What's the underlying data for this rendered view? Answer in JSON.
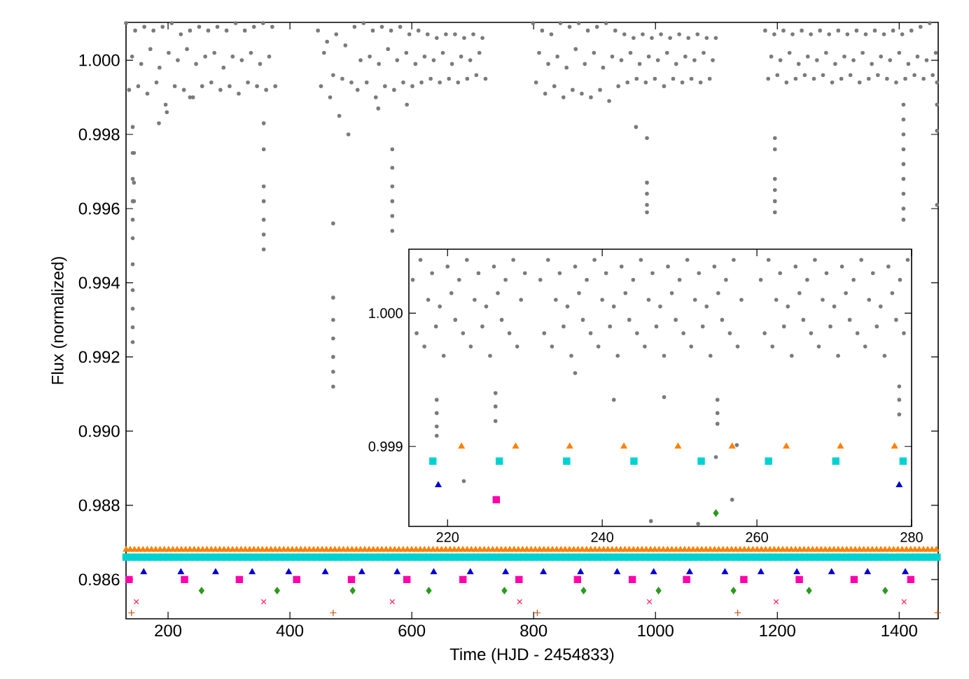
{
  "chart_data": [
    {
      "type": "scatter",
      "xlabel": "Time (HJD - 2454833)",
      "ylabel": "Flux (normalized)",
      "xlim": [
        131,
        1464
      ],
      "ylim": [
        0.98494,
        1.00102
      ],
      "xticks": [
        200,
        400,
        600,
        800,
        1000,
        1200,
        1400
      ],
      "yticks": [
        {
          "value": 0.986,
          "label": "0.986"
        },
        {
          "value": 0.988,
          "label": "0.988"
        },
        {
          "value": 0.99,
          "label": "0.990"
        },
        {
          "value": 0.992,
          "label": "0.992"
        },
        {
          "value": 0.994,
          "label": "0.994"
        },
        {
          "value": 0.996,
          "label": "0.996"
        },
        {
          "value": 0.998,
          "label": "0.998"
        },
        {
          "value": 1.0,
          "label": "1.000"
        }
      ],
      "series": [
        {
          "color": "#7a7a7a",
          "marker": "circle",
          "x": [
            131,
            136,
            141,
            146,
            151,
            156,
            161,
            166,
            171,
            176,
            181,
            186,
            191,
            196,
            201,
            206,
            211,
            216,
            221,
            226,
            231,
            236,
            241,
            246,
            251,
            256,
            261,
            266,
            271,
            276,
            281,
            286,
            291,
            296,
            301,
            306,
            311,
            316,
            321,
            326,
            331,
            336,
            341,
            346,
            351,
            356,
            361,
            366,
            371,
            376,
            446,
            451,
            456,
            461,
            466,
            471,
            476,
            481,
            486,
            491,
            496,
            501,
            506,
            511,
            516,
            521,
            526,
            531,
            536,
            541,
            546,
            551,
            556,
            561,
            566,
            571,
            576,
            581,
            586,
            591,
            596,
            601,
            606,
            611,
            616,
            621,
            626,
            631,
            636,
            641,
            646,
            651,
            656,
            661,
            666,
            671,
            676,
            681,
            686,
            691,
            696,
            701,
            706,
            711,
            716,
            721,
            799,
            804,
            809,
            814,
            819,
            824,
            829,
            834,
            839,
            844,
            849,
            854,
            859,
            864,
            869,
            874,
            879,
            884,
            889,
            894,
            899,
            904,
            909,
            914,
            919,
            924,
            929,
            934,
            939,
            944,
            949,
            954,
            959,
            964,
            969,
            974,
            979,
            984,
            989,
            994,
            999,
            1004,
            1009,
            1014,
            1019,
            1024,
            1029,
            1034,
            1039,
            1044,
            1049,
            1054,
            1059,
            1064,
            1069,
            1074,
            1079,
            1084,
            1089,
            1094,
            1099,
            1180,
            1185,
            1190,
            1195,
            1200,
            1205,
            1210,
            1215,
            1220,
            1225,
            1230,
            1235,
            1240,
            1245,
            1250,
            1255,
            1260,
            1265,
            1270,
            1275,
            1280,
            1285,
            1290,
            1295,
            1300,
            1305,
            1310,
            1315,
            1320,
            1325,
            1330,
            1335,
            1340,
            1345,
            1350,
            1355,
            1360,
            1365,
            1370,
            1375,
            1380,
            1385,
            1390,
            1395,
            1400,
            1405,
            1410,
            1415,
            1420,
            1425,
            1430,
            1435,
            1440,
            1445,
            1450,
            1455,
            1460,
            142,
            142,
            142,
            142,
            142,
            142,
            142,
            142,
            142,
            142,
            142,
            144,
            144,
            144,
            357,
            357,
            357,
            357,
            357,
            357,
            357,
            471,
            471,
            471,
            471,
            471,
            471,
            471,
            568,
            568,
            568,
            568,
            568,
            568,
            986,
            986,
            986,
            986,
            986,
            1196,
            1196,
            1196,
            1196,
            1196,
            1196,
            1407,
            1407,
            1407,
            1407,
            1407,
            1407,
            1407,
            1407,
            1407,
            1462,
            1462,
            1462,
            1462,
            198,
            185,
            236,
            968,
            545,
            592
          ],
          "values": [
            1.001,
            0.9992,
            1.0001,
            1.0008,
            0.9993,
            0.9999,
            1.0009,
            0.9991,
            1.0003,
            1.0008,
            0.9994,
            0.9998,
            1.0009,
            0.9988,
            1.0002,
            1.001,
            0.9993,
            1.0,
            1.0007,
            0.9992,
            1.0003,
            1.0008,
            0.999,
            0.9999,
            1.0009,
            0.9993,
            1.0001,
            1.0008,
            0.9994,
            1.0002,
            1.0009,
            0.9992,
            0.9998,
            1.0008,
            0.9993,
            1.0001,
            1.001,
            0.9991,
            1.0,
            1.0008,
            0.9994,
            1.0002,
            1.0009,
            0.9993,
            0.9999,
            1.001,
            0.9992,
            1.0001,
            1.0009,
            0.9993,
            1.0008,
            0.9993,
            1.0002,
            1.0005,
            0.999,
            0.9996,
            1.0007,
            0.9985,
            0.9995,
            1.0004,
            0.998,
            0.9994,
            1.0009,
            0.9992,
            1.0,
            1.001,
            0.9994,
            1.0001,
            1.0008,
            0.999,
            0.9999,
            1.0009,
            0.9993,
            1.0003,
            1.0008,
            0.9992,
            1.0,
            1.0009,
            0.9994,
            1.0002,
            1.0007,
            0.9993,
            0.9999,
            1.0008,
            0.9994,
            1.0001,
            1.0007,
            0.9995,
            1.0,
            1.0006,
            0.9994,
            1.0002,
            1.0007,
            0.9995,
            0.9999,
            1.0007,
            0.9994,
            1.0001,
            1.0006,
            0.9995,
            1.0,
            1.0007,
            0.9996,
            1.0002,
            1.0006,
            0.9995,
            1.001,
            0.9994,
            1.0002,
            1.0008,
            0.9991,
            0.9999,
            1.0007,
            0.9993,
            1.0001,
            1.001,
            0.999,
            0.9998,
            1.0009,
            0.9992,
            1.0003,
            1.001,
            0.9991,
            0.9999,
            1.0008,
            0.999,
            1.0002,
            1.0009,
            0.9992,
            0.9998,
            1.001,
            0.9989,
            1.0001,
            1.0008,
            0.9993,
            1.0,
            1.0007,
            0.9994,
            1.0002,
            1.0006,
            0.9995,
            0.9999,
            1.0007,
            0.9994,
            1.0001,
            1.0006,
            0.9995,
            1.0,
            1.0007,
            0.9993,
            1.0002,
            1.0006,
            0.9995,
            0.9999,
            1.0007,
            0.9994,
            1.0001,
            1.0006,
            0.9995,
            1.0,
            1.0007,
            0.9994,
            1.0002,
            1.0006,
            0.9995,
            1.0,
            1.0006,
            1.0008,
            0.9995,
            1.0001,
            1.0007,
            0.9996,
            1.0,
            1.0008,
            0.9994,
            1.0002,
            1.0007,
            0.9995,
            0.9999,
            1.0008,
            0.9996,
            1.0001,
            1.0007,
            0.9995,
            1.0,
            1.0008,
            0.9996,
            1.0002,
            1.0007,
            0.9994,
            0.9999,
            1.0008,
            0.9995,
            1.0001,
            1.0007,
            0.9996,
            1.0,
            1.0008,
            0.9994,
            1.0002,
            1.0007,
            0.9995,
            0.9999,
            1.0008,
            0.9996,
            1.0001,
            1.0007,
            0.9995,
            1.0,
            1.0008,
            0.9994,
            1.0002,
            1.0007,
            0.9995,
            0.9999,
            1.0008,
            0.9996,
            1.0001,
            1.0009,
            0.9995,
            1.0,
            1.001,
            0.9996,
            1.0002,
            0.9982,
            0.9975,
            0.9968,
            0.9962,
            0.9957,
            0.9952,
            0.9945,
            0.9938,
            0.9933,
            0.9928,
            0.9924,
            0.9975,
            0.9967,
            0.9962,
            0.9983,
            0.9976,
            0.9966,
            0.9962,
            0.9957,
            0.9953,
            0.9949,
            0.9956,
            0.9936,
            0.993,
            0.9925,
            0.992,
            0.9916,
            0.9912,
            0.9976,
            0.9971,
            0.9966,
            0.9962,
            0.9958,
            0.9954,
            0.9979,
            0.9967,
            0.9964,
            0.9961,
            0.9959,
            0.9979,
            0.9976,
            0.9968,
            0.9965,
            0.9962,
            0.9959,
            0.9988,
            0.9984,
            0.998,
            0.9976,
            0.9972,
            0.9968,
            0.9964,
            0.996,
            0.9957,
            0.9994,
            0.9988,
            0.9981,
            0.9961,
            0.9986,
            0.9983,
            0.999,
            0.9982,
            0.9987,
            0.9988
          ]
        },
        {
          "color": "#ff8000",
          "marker": "triangle",
          "x": [
            131.2,
            137.8,
            144.8,
            151.8,
            158.8,
            165.8,
            172.8,
            179.8,
            186.8,
            193.8,
            200.8,
            207.8,
            214.8,
            221.8,
            228.8,
            235.8,
            242.8,
            249.8,
            256.8,
            263.8,
            270.8,
            277.8,
            284.8,
            291.8,
            298.8,
            305.8,
            312.8,
            319.8,
            326.8,
            333.8,
            340.8,
            347.8,
            354.8,
            361.8,
            368.8,
            375.8,
            382.8,
            389.8,
            396.8,
            403.8,
            410.8,
            417.8,
            424.8,
            431.8,
            438.8,
            445.8,
            452.8,
            459.8,
            466.8,
            473.8,
            480.8,
            487.8,
            494.8,
            501.8,
            508.8,
            515.8,
            522.8,
            529.8,
            536.8,
            543.8,
            550.8,
            557.8,
            564.8,
            571.8,
            578.8,
            585.8,
            592.8,
            599.8,
            606.8,
            613.8,
            620.8,
            627.8,
            634.8,
            641.8,
            648.8,
            655.8,
            662.8,
            669.8,
            676.8,
            683.8,
            690.8,
            697.8,
            704.8,
            711.8,
            718.8,
            725.8,
            732.8,
            739.8,
            746.8,
            753.8,
            760.8,
            767.8,
            774.8,
            781.8,
            788.8,
            795.8,
            802.8,
            809.8,
            816.8,
            823.8,
            830.8,
            837.8,
            844.8,
            851.8,
            858.8,
            865.8,
            872.8,
            879.8,
            886.8,
            893.8,
            900.8,
            907.8,
            914.8,
            921.8,
            928.8,
            935.8,
            942.8,
            949.8,
            956.8,
            963.8,
            970.8,
            977.8,
            984.8,
            991.8,
            998.8,
            1005.8,
            1012.8,
            1019.8,
            1026.8,
            1033.8,
            1040.8,
            1047.8,
            1054.8,
            1061.8,
            1068.8,
            1075.8,
            1082.8,
            1089.8,
            1096.8,
            1103.8,
            1110.8,
            1117.8,
            1124.8,
            1131.8,
            1138.8,
            1145.8,
            1152.8,
            1159.8,
            1166.8,
            1173.8,
            1180.8,
            1187.8,
            1194.8,
            1201.8,
            1208.8,
            1215.8,
            1222.8,
            1229.8,
            1236.8,
            1243.8,
            1250.8,
            1257.8,
            1264.8,
            1271.8,
            1278.8,
            1285.8,
            1292.8,
            1299.8,
            1306.8,
            1313.8,
            1320.8,
            1327.8,
            1334.8,
            1341.8,
            1348.8,
            1355.8,
            1362.8,
            1369.8,
            1376.8,
            1383.8,
            1390.8,
            1397.8,
            1404.8,
            1411.8,
            1418.8,
            1425.8,
            1432.8,
            1439.8,
            1446.8,
            1453.8,
            1460.8
          ],
          "values": [
            0.9868,
            0.9868,
            0.9868,
            0.9868,
            0.9868,
            0.9868,
            0.9868,
            0.9868,
            0.9868,
            0.9868,
            0.9868,
            0.9868,
            0.9868,
            0.9868,
            0.9868,
            0.9868,
            0.9868,
            0.9868,
            0.9868,
            0.9868,
            0.9868,
            0.9868,
            0.9868,
            0.9868,
            0.9868,
            0.9868,
            0.9868,
            0.9868,
            0.9868,
            0.9868,
            0.9868,
            0.9868,
            0.9868,
            0.9868,
            0.9868,
            0.9868,
            0.9868,
            0.9868,
            0.9868,
            0.9868,
            0.9868,
            0.9868,
            0.9868,
            0.9868,
            0.9868,
            0.9868,
            0.9868,
            0.9868,
            0.9868,
            0.9868,
            0.9868,
            0.9868,
            0.9868,
            0.9868,
            0.9868,
            0.9868,
            0.9868,
            0.9868,
            0.9868,
            0.9868,
            0.9868,
            0.9868,
            0.9868,
            0.9868,
            0.9868,
            0.9868,
            0.9868,
            0.9868,
            0.9868,
            0.9868,
            0.9868,
            0.9868,
            0.9868,
            0.9868,
            0.9868,
            0.9868,
            0.9868,
            0.9868,
            0.9868,
            0.9868,
            0.9868,
            0.9868,
            0.9868,
            0.9868,
            0.9868,
            0.9868,
            0.9868,
            0.9868,
            0.9868,
            0.9868,
            0.9868,
            0.9868,
            0.9868,
            0.9868,
            0.9868,
            0.9868,
            0.9868,
            0.9868,
            0.9868,
            0.9868,
            0.9868,
            0.9868,
            0.9868,
            0.9868,
            0.9868,
            0.9868,
            0.9868,
            0.9868,
            0.9868,
            0.9868,
            0.9868,
            0.9868,
            0.9868,
            0.9868,
            0.9868,
            0.9868,
            0.9868,
            0.9868,
            0.9868,
            0.9868,
            0.9868,
            0.9868,
            0.9868,
            0.9868,
            0.9868,
            0.9868,
            0.9868,
            0.9868,
            0.9868,
            0.9868,
            0.9868,
            0.9868,
            0.9868,
            0.9868,
            0.9868,
            0.9868,
            0.9868,
            0.9868,
            0.9868,
            0.9868,
            0.9868,
            0.9868,
            0.9868,
            0.9868,
            0.9868,
            0.9868,
            0.9868,
            0.9868,
            0.9868,
            0.9868,
            0.9868,
            0.9868,
            0.9868,
            0.9868,
            0.9868,
            0.9868,
            0.9868,
            0.9868,
            0.9868,
            0.9868,
            0.9868,
            0.9868,
            0.9868,
            0.9868,
            0.9868,
            0.9868,
            0.9868,
            0.9868,
            0.9868,
            0.9868,
            0.9868,
            0.9868,
            0.9868,
            0.9868,
            0.9868,
            0.9868,
            0.9868,
            0.9868,
            0.9868,
            0.9868,
            0.9868,
            0.9868,
            0.9868,
            0.9868,
            0.9868,
            0.9868,
            0.9868,
            0.9868,
            0.9868,
            0.9868,
            0.9868
          ]
        },
        {
          "color": "#00d2d2",
          "marker": "square",
          "x": [
            131,
            139.7,
            148.4,
            157.1,
            165.8,
            174.5,
            183.2,
            191.9,
            200.6,
            209.3,
            218,
            226.7,
            235.4,
            244.1,
            252.8,
            261.5,
            270.2,
            278.9,
            287.6,
            296.3,
            305,
            313.7,
            322.4,
            331.1,
            339.8,
            348.5,
            357.2,
            365.9,
            374.6,
            383.3,
            392,
            400.7,
            409.4,
            418.1,
            426.8,
            435.5,
            444.2,
            452.9,
            461.6,
            470.3,
            479,
            487.7,
            496.4,
            505.1,
            513.8,
            522.5,
            531.2,
            539.9,
            548.6,
            557.3,
            566,
            574.7,
            583.4,
            592.1,
            600.8,
            609.5,
            618.2,
            626.9,
            635.6,
            644.3,
            653,
            661.7,
            670.4,
            679.1,
            687.8,
            696.5,
            705.2,
            713.9,
            722.6,
            731.3,
            740,
            748.7,
            757.4,
            766.1,
            774.8,
            783.5,
            792.2,
            800.9,
            809.6,
            818.3,
            827,
            835.7,
            844.4,
            853.1,
            861.8,
            870.5,
            879.2,
            887.9,
            896.6,
            905.3,
            914,
            922.7,
            931.4,
            940.1,
            948.8,
            957.5,
            966.2,
            974.9,
            983.6,
            992.3,
            1001,
            1009.7,
            1018.4,
            1027.1,
            1035.8,
            1044.5,
            1053.2,
            1061.9,
            1070.6,
            1079.3,
            1088,
            1096.7,
            1105.4,
            1114.1,
            1122.8,
            1131.5,
            1140.2,
            1148.9,
            1157.6,
            1166.3,
            1175,
            1183.7,
            1192.4,
            1201.1,
            1209.8,
            1218.5,
            1227.2,
            1235.9,
            1244.6,
            1253.3,
            1262,
            1270.7,
            1279.4,
            1288.1,
            1296.8,
            1305.5,
            1314.2,
            1322.9,
            1331.6,
            1340.3,
            1349,
            1357.7,
            1366.4,
            1375.1,
            1383.8,
            1392.5,
            1401.2,
            1409.9,
            1418.6,
            1427.3,
            1436,
            1444.7,
            1453.4,
            1462.1
          ],
          "values": [
            0.9866,
            0.9866,
            0.9866,
            0.9866,
            0.9866,
            0.9866,
            0.9866,
            0.9866,
            0.9866,
            0.9866,
            0.9866,
            0.9866,
            0.9866,
            0.9866,
            0.9866,
            0.9866,
            0.9866,
            0.9866,
            0.9866,
            0.9866,
            0.9866,
            0.9866,
            0.9866,
            0.9866,
            0.9866,
            0.9866,
            0.9866,
            0.9866,
            0.9866,
            0.9866,
            0.9866,
            0.9866,
            0.9866,
            0.9866,
            0.9866,
            0.9866,
            0.9866,
            0.9866,
            0.9866,
            0.9866,
            0.9866,
            0.9866,
            0.9866,
            0.9866,
            0.9866,
            0.9866,
            0.9866,
            0.9866,
            0.9866,
            0.9866,
            0.9866,
            0.9866,
            0.9866,
            0.9866,
            0.9866,
            0.9866,
            0.9866,
            0.9866,
            0.9866,
            0.9866,
            0.9866,
            0.9866,
            0.9866,
            0.9866,
            0.9866,
            0.9866,
            0.9866,
            0.9866,
            0.9866,
            0.9866,
            0.9866,
            0.9866,
            0.9866,
            0.9866,
            0.9866,
            0.9866,
            0.9866,
            0.9866,
            0.9866,
            0.9866,
            0.9866,
            0.9866,
            0.9866,
            0.9866,
            0.9866,
            0.9866,
            0.9866,
            0.9866,
            0.9866,
            0.9866,
            0.9866,
            0.9866,
            0.9866,
            0.9866,
            0.9866,
            0.9866,
            0.9866,
            0.9866,
            0.9866,
            0.9866,
            0.9866,
            0.9866,
            0.9866,
            0.9866,
            0.9866,
            0.9866,
            0.9866,
            0.9866,
            0.9866,
            0.9866,
            0.9866,
            0.9866,
            0.9866,
            0.9866,
            0.9866,
            0.9866,
            0.9866,
            0.9866,
            0.9866,
            0.9866,
            0.9866,
            0.9866,
            0.9866,
            0.9866,
            0.9866,
            0.9866,
            0.9866,
            0.9866,
            0.9866,
            0.9866,
            0.9866,
            0.9866,
            0.9866,
            0.9866,
            0.9866,
            0.9866,
            0.9866,
            0.9866,
            0.9866,
            0.9866,
            0.9866,
            0.9866,
            0.9866,
            0.9866,
            0.9866,
            0.9866,
            0.9866,
            0.9866,
            0.9866,
            0.9866,
            0.9866,
            0.9866,
            0.9866,
            0.9866
          ]
        },
        {
          "color": "#0000d0",
          "marker": "triangle",
          "x": [
            160,
            221,
            278,
            338,
            398,
            458,
            518,
            576,
            636,
            696,
            754,
            816,
            877,
            937,
            997,
            1056,
            1114,
            1173,
            1232,
            1289,
            1348,
            1410
          ],
          "values": [
            0.9862,
            0.9862,
            0.9862,
            0.9862,
            0.9862,
            0.9862,
            0.9862,
            0.9862,
            0.9862,
            0.9862,
            0.9862,
            0.9862,
            0.9862,
            0.9862,
            0.9862,
            0.9862,
            0.9862,
            0.9862,
            0.9862,
            0.9862,
            0.9862,
            0.9862
          ]
        },
        {
          "color": "#ff00aa",
          "marker": "square",
          "x": [
            136,
            227,
            317,
            411,
            501,
            592,
            684,
            776,
            872,
            962,
            1051,
            1145,
            1236,
            1326,
            1419
          ],
          "values": [
            0.986,
            0.986,
            0.986,
            0.986,
            0.986,
            0.986,
            0.986,
            0.986,
            0.986,
            0.986,
            0.986,
            0.986,
            0.986,
            0.986,
            0.986
          ]
        },
        {
          "color": "#2a9a1a",
          "marker": "diamond",
          "x": [
            255,
            379,
            503,
            628,
            752,
            882,
            1005,
            1128,
            1252,
            1377
          ],
          "values": [
            0.9857,
            0.9857,
            0.9857,
            0.9857,
            0.9857,
            0.9857,
            0.9857,
            0.9857,
            0.9857,
            0.9857
          ]
        },
        {
          "color": "#ff1040",
          "marker": "cross",
          "x": [
            148,
            357,
            568,
            777,
            990,
            1198,
            1408
          ],
          "values": [
            0.9854,
            0.9854,
            0.9854,
            0.9854,
            0.9854,
            0.9854,
            0.9854
          ]
        },
        {
          "color": "#c05010",
          "marker": "plus",
          "x": [
            140,
            471,
            806,
            1135,
            1463
          ],
          "values": [
            0.9851,
            0.9851,
            0.9851,
            0.9851,
            0.9851
          ]
        }
      ]
    },
    {
      "type": "scatter",
      "xlim": [
        215,
        280
      ],
      "ylim": [
        0.9984,
        1.00048
      ],
      "xticks": [
        220,
        240,
        260,
        280
      ],
      "yticks": [
        {
          "value": 0.999,
          "label": "0.999"
        },
        {
          "value": 1.0,
          "label": "1.000"
        }
      ],
      "series": [
        {
          "color": "#7a7a7a",
          "marker": "circle",
          "x": [
            215.5,
            216,
            216.5,
            217,
            217.5,
            218,
            218.5,
            219,
            219.5,
            220,
            220.5,
            221,
            221.5,
            222,
            222.5,
            223,
            223.5,
            224,
            224.5,
            225,
            225.5,
            226,
            226.5,
            227,
            227.5,
            228,
            228.5,
            229,
            229.5,
            230,
            232,
            232.5,
            233,
            233.5,
            234,
            234.5,
            235,
            235.5,
            236,
            236.5,
            237,
            237.5,
            238,
            238.5,
            239,
            239.5,
            240,
            240.5,
            241,
            241.5,
            242,
            242.5,
            243,
            243.5,
            244,
            244.5,
            245,
            245.5,
            246,
            246.5,
            247,
            247.5,
            248,
            248.5,
            249,
            249.5,
            250,
            250.5,
            251,
            251.5,
            252,
            252.5,
            253,
            253.5,
            254,
            254.5,
            255,
            255.5,
            256,
            256.5,
            257,
            257.5,
            258,
            260.5,
            261,
            261.5,
            262,
            262.5,
            263,
            263.5,
            264,
            264.5,
            265,
            265.5,
            266,
            266.5,
            267,
            267.5,
            268,
            268.5,
            269,
            269.5,
            270,
            270.5,
            271,
            271.5,
            272,
            272.5,
            273,
            273.5,
            274,
            274.5,
            275,
            275.5,
            276,
            276.5,
            277,
            277.5,
            278,
            278.5,
            279,
            279.5,
            218.6,
            218.6,
            218.6,
            218.6,
            226.2,
            226.2,
            226.2,
            254.9,
            254.9,
            254.9,
            278.4,
            278.4,
            278.4,
            222.1,
            246.3,
            252.4,
            254.7,
            256.8,
            257.4,
            241.5,
            248,
            236.5
          ],
          "values": [
            1.00025,
            0.99985,
            1.0004,
            0.99975,
            1.0001,
            1.0003,
            0.9999,
            1.00005,
            0.99968,
            1.00035,
            1.00015,
            0.99995,
            1.00025,
            0.99985,
            1.0004,
            0.99975,
            1.0001,
            1.0003,
            0.9999,
            1.00005,
            0.99968,
            1.00035,
            1.00015,
            0.99995,
            1.00025,
            0.99985,
            1.0004,
            0.99975,
            1.0001,
            1.0003,
            1.00025,
            0.99985,
            1.0004,
            0.99975,
            1.0001,
            1.0003,
            0.9999,
            1.00005,
            0.99968,
            1.00035,
            1.00015,
            0.99995,
            1.00025,
            0.99985,
            1.0004,
            0.99975,
            1.0001,
            1.0003,
            0.9999,
            1.00005,
            0.99968,
            1.00035,
            1.00015,
            0.99995,
            1.00025,
            0.99985,
            1.0004,
            0.99975,
            1.0001,
            1.0003,
            0.9999,
            1.00005,
            0.99968,
            1.00035,
            1.00015,
            0.99995,
            1.00025,
            0.99985,
            1.0004,
            0.99975,
            1.0001,
            1.0003,
            0.9999,
            1.00005,
            0.99968,
            1.00035,
            1.00015,
            0.99995,
            1.00025,
            0.99985,
            1.0004,
            0.99975,
            1.0001,
            1.00025,
            0.99985,
            1.0004,
            0.99975,
            1.0001,
            1.0003,
            0.9999,
            1.00005,
            0.99968,
            1.00035,
            1.00015,
            0.99995,
            1.00025,
            0.99985,
            1.0004,
            0.99975,
            1.0001,
            1.0003,
            0.9999,
            1.00005,
            0.99968,
            1.00035,
            1.00015,
            0.99995,
            1.00025,
            0.99985,
            1.0004,
            0.99975,
            1.0001,
            1.0003,
            0.9999,
            1.00005,
            0.99968,
            1.00035,
            1.00015,
            0.99995,
            1.00025,
            0.99985,
            1.0004,
            0.99935,
            0.99925,
            0.99915,
            0.99908,
            0.9994,
            0.9993,
            0.99919,
            0.99935,
            0.99925,
            0.99917,
            0.99945,
            0.99935,
            0.99924,
            0.99874,
            0.99844,
            0.99842,
            0.99892,
            0.9986,
            0.99901,
            0.99935,
            0.99937,
            0.99955
          ]
        },
        {
          "color": "#ff8000",
          "marker": "triangle",
          "x": [
            221.8,
            228.8,
            235.8,
            242.8,
            249.8,
            256.8,
            263.8,
            270.8,
            277.8
          ],
          "values": [
            0.999,
            0.999,
            0.999,
            0.999,
            0.999,
            0.999,
            0.999,
            0.999,
            0.999
          ]
        },
        {
          "color": "#00d2d2",
          "marker": "square",
          "x": [
            218.1,
            226.7,
            235.4,
            244.1,
            252.8,
            261.5,
            270.2,
            278.9
          ],
          "values": [
            0.99889,
            0.99889,
            0.99889,
            0.99889,
            0.99889,
            0.99889,
            0.99889,
            0.99889
          ]
        },
        {
          "color": "#0000d0",
          "marker": "triangle",
          "x": [
            218.8,
            278.4
          ],
          "values": [
            0.99871,
            0.99871
          ]
        },
        {
          "color": "#ff00aa",
          "marker": "square",
          "x": [
            226.3
          ],
          "values": [
            0.9986
          ]
        },
        {
          "color": "#2a9a1a",
          "marker": "diamond",
          "x": [
            254.7
          ],
          "values": [
            0.9985
          ]
        }
      ]
    }
  ]
}
